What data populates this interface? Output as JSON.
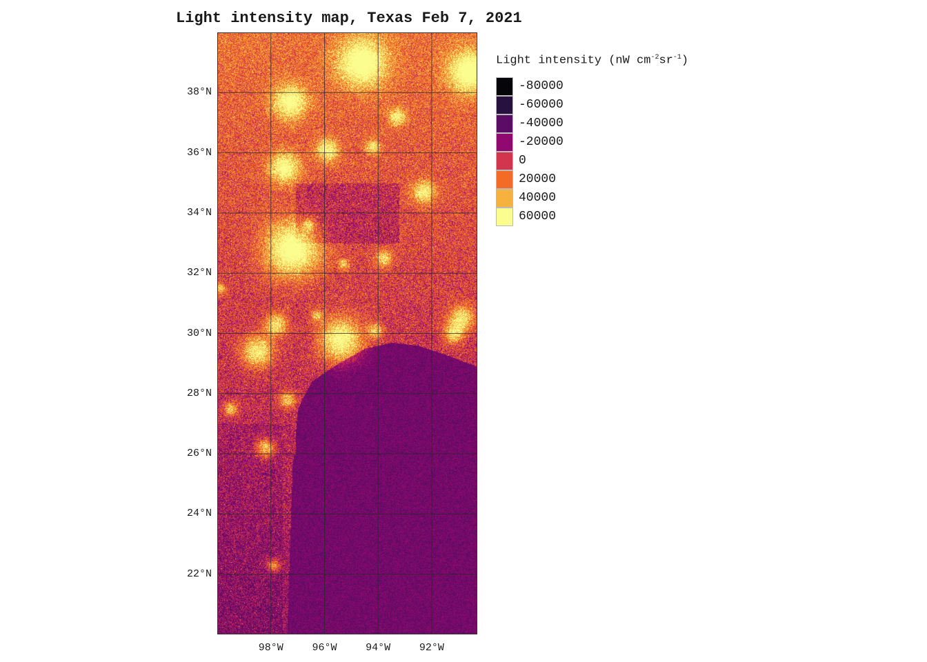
{
  "map": {
    "title": "Light intensity map, Texas Feb 7, 2021",
    "lat_labels": [
      {
        "deg": 38,
        "label": "38°N"
      },
      {
        "deg": 36,
        "label": "36°N"
      },
      {
        "deg": 34,
        "label": "34°N"
      },
      {
        "deg": 32,
        "label": "32°N"
      },
      {
        "deg": 30,
        "label": "30°N"
      },
      {
        "deg": 28,
        "label": "28°N"
      },
      {
        "deg": 26,
        "label": "26°N"
      },
      {
        "deg": 24,
        "label": "24°N"
      },
      {
        "deg": 22,
        "label": "22°N"
      }
    ],
    "lon_labels": [
      {
        "deg": -98,
        "label": "98°W"
      },
      {
        "deg": -96,
        "label": "96°W"
      },
      {
        "deg": -94,
        "label": "94°W"
      },
      {
        "deg": -92,
        "label": "92°W"
      }
    ],
    "extent": {
      "lon_min": -100,
      "lon_max": -90.3,
      "lat_min": 20,
      "lat_max": 40
    }
  },
  "legend": {
    "title_prefix": "Light intensity (nW cm",
    "title_sup1": "-2",
    "title_mid": "sr",
    "title_sup2": "-1",
    "title_suffix": ")",
    "items": [
      {
        "label": "-80000",
        "color": "#060509"
      },
      {
        "label": "-60000",
        "color": "#26113f"
      },
      {
        "label": "-40000",
        "color": "#5b0c64"
      },
      {
        "label": "-20000",
        "color": "#900870"
      },
      {
        "label": "0",
        "color": "#d2364e"
      },
      {
        "label": "20000",
        "color": "#f36b24"
      },
      {
        "label": "40000",
        "color": "#f6b23d"
      },
      {
        "label": "60000",
        "color": "#fbfd8e"
      }
    ]
  }
}
